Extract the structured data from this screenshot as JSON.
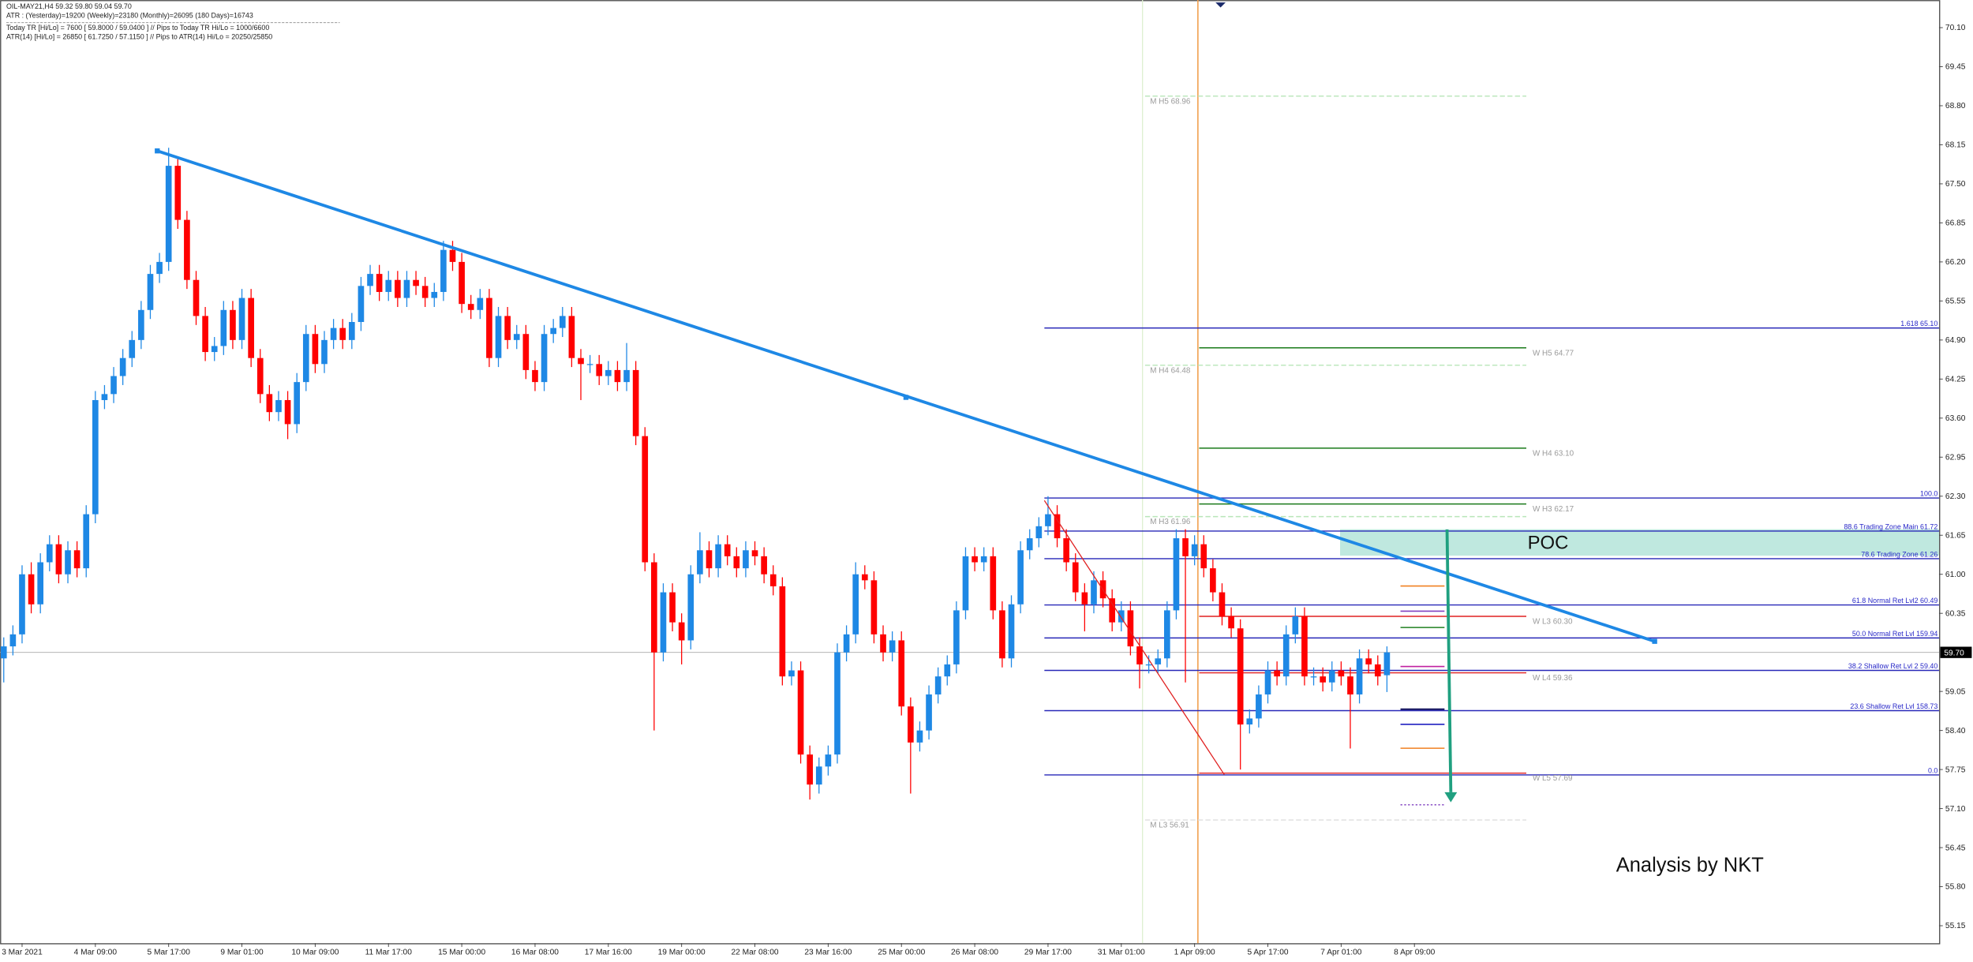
{
  "header": {
    "lines": [
      "OIL-MAY21,H4  59.32 59.80 59.04 59.70",
      "ATR : (Yesterday)=19200     (Weekly)=23180     (Monthly)=26095     (180 Days)=16743",
      "Today  TR [Hi/Lo] = 7600 [ 59.8000 / 59.0400 ]  // Pips to Today  TR Hi/Lo  = 1000/6600",
      "ATR(14)      [Hi/Lo] = 26850 [ 61.7250 / 57.1150 ]  // Pips to ATR(14) Hi/Lo      = 20250/25850"
    ]
  },
  "chart_data": {
    "type": "candlestick",
    "up_color": "#1e88e5",
    "down_color": "#ff0000",
    "xlim": [
      -0.41,
      211.27
    ],
    "ylim": [
      54.86,
      70.56
    ],
    "xticks": [
      {
        "value": 2,
        "label": "3 Mar 2021"
      },
      {
        "value": 10,
        "label": "4 Mar 09:00"
      },
      {
        "value": 18,
        "label": "5 Mar 17:00"
      },
      {
        "value": 26,
        "label": "9 Mar 01:00"
      },
      {
        "value": 34,
        "label": "10 Mar 09:00"
      },
      {
        "value": 42,
        "label": "11 Mar 17:00"
      },
      {
        "value": 50,
        "label": "15 Mar 00:00"
      },
      {
        "value": 58,
        "label": "16 Mar 08:00"
      },
      {
        "value": 66,
        "label": "17 Mar 16:00"
      },
      {
        "value": 74,
        "label": "19 Mar 00:00"
      },
      {
        "value": 82,
        "label": "22 Mar 08:00"
      },
      {
        "value": 90,
        "label": "23 Mar 16:00"
      },
      {
        "value": 98,
        "label": "25 Mar 00:00"
      },
      {
        "value": 106,
        "label": "26 Mar 08:00"
      },
      {
        "value": 114,
        "label": "29 Mar 17:00"
      },
      {
        "value": 122,
        "label": "31 Mar 01:00"
      },
      {
        "value": 130,
        "label": "1 Apr 09:00"
      },
      {
        "value": 138,
        "label": "5 Apr 17:00"
      },
      {
        "value": 146,
        "label": "7 Apr 01:00"
      },
      {
        "value": 154,
        "label": "8 Apr 09:00"
      }
    ],
    "yticks": [
      {
        "value": 70.1,
        "label": "70.10"
      },
      69.45,
      {
        "value": 68.8,
        "label": "68.80"
      },
      68.15,
      {
        "value": 67.5,
        "label": "67.50"
      },
      66.85,
      {
        "value": 66.2,
        "label": "66.20"
      },
      65.55,
      {
        "value": 64.9,
        "label": "64.90"
      },
      64.25,
      {
        "value": 63.6,
        "label": "63.60"
      },
      62.95,
      {
        "value": 62.3,
        "label": "62.30"
      },
      61.65,
      {
        "value": 61,
        "label": "61.00"
      },
      60.35,
      59.05,
      {
        "value": 58.4,
        "label": "58.40"
      },
      57.75,
      {
        "value": 57.1,
        "label": "57.10"
      },
      56.45,
      {
        "value": 55.8,
        "label": "55.80"
      },
      55.15
    ],
    "last_price": {
      "value": 59.7,
      "label": "59.70"
    },
    "candles": [
      [
        59.6,
        59.95,
        59.2,
        59.8
      ],
      [
        59.8,
        60.15,
        59.65,
        60.0
      ],
      [
        60.0,
        61.15,
        59.85,
        61.0
      ],
      [
        61.0,
        61.2,
        60.35,
        60.5
      ],
      [
        60.5,
        61.35,
        60.35,
        61.2
      ],
      [
        61.2,
        61.65,
        61.05,
        61.5
      ],
      [
        61.5,
        61.65,
        60.85,
        61.0
      ],
      [
        61.0,
        61.55,
        60.85,
        61.4
      ],
      [
        61.4,
        61.55,
        60.95,
        61.1
      ],
      [
        61.1,
        62.15,
        60.95,
        62.0
      ],
      [
        62.0,
        64.05,
        61.85,
        63.9
      ],
      [
        63.9,
        64.15,
        63.75,
        64.0
      ],
      [
        64.0,
        64.45,
        63.85,
        64.3
      ],
      [
        64.3,
        64.75,
        64.15,
        64.6
      ],
      [
        64.6,
        65.05,
        64.45,
        64.9
      ],
      [
        64.9,
        65.55,
        64.75,
        65.4
      ],
      [
        65.4,
        66.15,
        65.25,
        66.0
      ],
      [
        66.0,
        66.35,
        65.85,
        66.2
      ],
      [
        66.2,
        68.1,
        66.05,
        67.8
      ],
      [
        67.8,
        67.95,
        66.75,
        66.9
      ],
      [
        66.9,
        67.05,
        65.75,
        65.9
      ],
      [
        65.9,
        66.05,
        65.15,
        65.3
      ],
      [
        65.3,
        65.45,
        64.55,
        64.7
      ],
      [
        64.7,
        64.95,
        64.55,
        64.8
      ],
      [
        64.8,
        65.55,
        64.65,
        65.4
      ],
      [
        65.4,
        65.55,
        64.75,
        64.9
      ],
      [
        64.9,
        65.75,
        64.75,
        65.6
      ],
      [
        65.6,
        65.75,
        64.45,
        64.6
      ],
      [
        64.6,
        64.75,
        63.85,
        64.0
      ],
      [
        64.0,
        64.15,
        63.55,
        63.7
      ],
      [
        63.7,
        64.05,
        63.55,
        63.9
      ],
      [
        63.9,
        64.05,
        63.25,
        63.5
      ],
      [
        63.5,
        64.35,
        63.35,
        64.2
      ],
      [
        64.2,
        65.15,
        64.05,
        65.0
      ],
      [
        65.0,
        65.15,
        64.35,
        64.5
      ],
      [
        64.5,
        65.05,
        64.35,
        64.9
      ],
      [
        64.9,
        65.25,
        64.75,
        65.1
      ],
      [
        65.1,
        65.25,
        64.75,
        64.9
      ],
      [
        64.9,
        65.35,
        64.75,
        65.2
      ],
      [
        65.2,
        65.95,
        65.05,
        65.8
      ],
      [
        65.8,
        66.15,
        65.65,
        66.0
      ],
      [
        66.0,
        66.15,
        65.55,
        65.7
      ],
      [
        65.7,
        66.05,
        65.55,
        65.9
      ],
      [
        65.9,
        66.05,
        65.45,
        65.6
      ],
      [
        65.6,
        66.05,
        65.45,
        65.9
      ],
      [
        65.9,
        66.05,
        65.65,
        65.8
      ],
      [
        65.8,
        65.95,
        65.45,
        65.6
      ],
      [
        65.6,
        65.85,
        65.45,
        65.7
      ],
      [
        65.7,
        66.55,
        65.55,
        66.4
      ],
      [
        66.4,
        66.55,
        66.05,
        66.2
      ],
      [
        66.2,
        66.35,
        65.35,
        65.5
      ],
      [
        65.5,
        65.65,
        65.25,
        65.4
      ],
      [
        65.4,
        65.75,
        65.25,
        65.6
      ],
      [
        65.6,
        65.75,
        64.45,
        64.6
      ],
      [
        64.6,
        65.45,
        64.45,
        65.3
      ],
      [
        65.3,
        65.45,
        64.75,
        64.9
      ],
      [
        64.9,
        65.15,
        64.75,
        65.0
      ],
      [
        65.0,
        65.15,
        64.25,
        64.4
      ],
      [
        64.4,
        64.55,
        64.05,
        64.2
      ],
      [
        64.2,
        65.15,
        64.05,
        65.0
      ],
      [
        65.0,
        65.25,
        64.85,
        65.1
      ],
      [
        65.1,
        65.45,
        64.95,
        65.3
      ],
      [
        65.3,
        65.45,
        64.45,
        64.6
      ],
      [
        64.6,
        64.75,
        63.9,
        64.5
      ],
      [
        64.5,
        64.65,
        64.35,
        64.5
      ],
      [
        64.5,
        64.65,
        64.15,
        64.3
      ],
      [
        64.3,
        64.55,
        64.15,
        64.4
      ],
      [
        64.4,
        64.55,
        64.05,
        64.2
      ],
      [
        64.2,
        64.85,
        64.05,
        64.4
      ],
      [
        64.4,
        64.55,
        63.15,
        63.3
      ],
      [
        63.3,
        63.45,
        61.05,
        61.2
      ],
      [
        61.2,
        61.35,
        58.4,
        59.7
      ],
      [
        59.7,
        60.85,
        59.55,
        60.7
      ],
      [
        60.7,
        60.85,
        60.05,
        60.2
      ],
      [
        60.2,
        60.35,
        59.5,
        59.9
      ],
      [
        59.9,
        61.15,
        59.75,
        61.0
      ],
      [
        61.0,
        61.7,
        60.85,
        61.4
      ],
      [
        61.4,
        61.55,
        60.95,
        61.1
      ],
      [
        61.1,
        61.65,
        60.95,
        61.5
      ],
      [
        61.5,
        61.65,
        61.15,
        61.3
      ],
      [
        61.3,
        61.45,
        60.95,
        61.1
      ],
      [
        61.1,
        61.55,
        60.95,
        61.4
      ],
      [
        61.4,
        61.55,
        61.15,
        61.3
      ],
      [
        61.3,
        61.45,
        60.85,
        61.0
      ],
      [
        61.0,
        61.15,
        60.65,
        60.8
      ],
      [
        60.8,
        60.95,
        59.15,
        59.3
      ],
      [
        59.3,
        59.55,
        59.15,
        59.4
      ],
      [
        59.4,
        59.55,
        57.85,
        58.0
      ],
      [
        58.0,
        58.15,
        57.25,
        57.5
      ],
      [
        57.5,
        57.95,
        57.35,
        57.8
      ],
      [
        57.8,
        58.15,
        57.65,
        58.0
      ],
      [
        58.0,
        59.85,
        57.85,
        59.7
      ],
      [
        59.7,
        60.15,
        59.55,
        60.0
      ],
      [
        60.0,
        61.2,
        59.85,
        61.0
      ],
      [
        61.0,
        61.15,
        60.75,
        60.9
      ],
      [
        60.9,
        61.05,
        59.85,
        60.0
      ],
      [
        60.0,
        60.15,
        59.55,
        59.7
      ],
      [
        59.7,
        60.05,
        59.55,
        59.9
      ],
      [
        59.9,
        60.05,
        58.65,
        58.8
      ],
      [
        58.8,
        58.95,
        57.35,
        58.2
      ],
      [
        58.2,
        58.55,
        58.05,
        58.4
      ],
      [
        58.4,
        59.15,
        58.25,
        59.0
      ],
      [
        59.0,
        59.45,
        58.85,
        59.3
      ],
      [
        59.3,
        59.65,
        59.15,
        59.5
      ],
      [
        59.5,
        60.55,
        59.35,
        60.4
      ],
      [
        60.4,
        61.45,
        60.25,
        61.3
      ],
      [
        61.3,
        61.45,
        61.05,
        61.2
      ],
      [
        61.2,
        61.45,
        61.05,
        61.3
      ],
      [
        61.3,
        61.45,
        60.25,
        60.4
      ],
      [
        60.4,
        60.55,
        59.45,
        59.6
      ],
      [
        59.6,
        60.65,
        59.45,
        60.5
      ],
      [
        60.5,
        61.55,
        60.35,
        61.4
      ],
      [
        61.4,
        61.75,
        61.25,
        61.6
      ],
      [
        61.6,
        61.95,
        61.45,
        61.8
      ],
      [
        61.8,
        62.3,
        61.65,
        62.0
      ],
      [
        62.0,
        62.15,
        61.45,
        61.6
      ],
      [
        61.6,
        61.75,
        61.05,
        61.2
      ],
      [
        61.2,
        61.35,
        60.55,
        60.7
      ],
      [
        60.7,
        60.85,
        60.05,
        60.5
      ],
      [
        60.5,
        61.05,
        60.35,
        60.9
      ],
      [
        60.9,
        61.05,
        60.45,
        60.6
      ],
      [
        60.6,
        60.75,
        60.05,
        60.2
      ],
      [
        60.2,
        60.55,
        60.05,
        60.4
      ],
      [
        60.4,
        60.55,
        59.65,
        59.8
      ],
      [
        59.8,
        59.95,
        59.1,
        59.5
      ],
      [
        59.5,
        59.65,
        59.35,
        59.5
      ],
      [
        59.5,
        59.75,
        59.35,
        59.6
      ],
      [
        59.6,
        60.55,
        59.45,
        60.4
      ],
      [
        60.4,
        61.75,
        60.25,
        61.6
      ],
      [
        61.6,
        61.75,
        59.2,
        61.3
      ],
      [
        61.3,
        61.65,
        61.15,
        61.5
      ],
      [
        61.5,
        61.65,
        60.95,
        61.1
      ],
      [
        61.1,
        61.25,
        60.55,
        60.7
      ],
      [
        60.7,
        60.85,
        60.15,
        60.3
      ],
      [
        60.3,
        60.45,
        59.95,
        60.1
      ],
      [
        60.1,
        60.25,
        57.75,
        58.5
      ],
      [
        58.5,
        58.75,
        58.35,
        58.6
      ],
      [
        58.6,
        59.15,
        58.45,
        59.0
      ],
      [
        59.0,
        59.55,
        58.85,
        59.4
      ],
      [
        59.4,
        59.55,
        59.15,
        59.3
      ],
      [
        59.3,
        60.15,
        59.15,
        60.0
      ],
      [
        60.0,
        60.45,
        59.85,
        60.3
      ],
      [
        60.3,
        60.45,
        59.15,
        59.3
      ],
      [
        59.3,
        59.45,
        59.15,
        59.3
      ],
      [
        59.3,
        59.45,
        59.05,
        59.2
      ],
      [
        59.2,
        59.55,
        59.05,
        59.4
      ],
      [
        59.4,
        59.55,
        59.15,
        59.3
      ],
      [
        59.3,
        59.45,
        58.1,
        59.0
      ],
      [
        59.0,
        59.75,
        58.85,
        59.6
      ],
      [
        59.6,
        59.75,
        59.35,
        59.5
      ],
      [
        59.5,
        59.65,
        59.15,
        59.3
      ],
      [
        59.32,
        59.8,
        59.04,
        59.7
      ]
    ],
    "fib_levels": [
      {
        "label": "1.618 65.10",
        "value": 65.1
      },
      {
        "label": "100.0",
        "value": 62.27
      },
      {
        "label": "88.6 Trading Zone Main 61.72",
        "value": 61.72
      },
      {
        "label": "78.6 Trading Zone 61.26",
        "value": 61.26
      },
      {
        "label": "61.8 Normal Ret Lvl2 60.49",
        "value": 60.49
      },
      {
        "label": "50.0 Normal Ret Lvl 159.94",
        "value": 59.94
      },
      {
        "label": "38.2 Shallow Ret Lvl 2 59.40",
        "value": 59.4
      },
      {
        "label": "23.6 Shallow Ret Lvl 158.73",
        "value": 58.73
      },
      {
        "label": "0.0",
        "value": 57.66
      }
    ],
    "monthly_pivots": [
      {
        "label": "M  H5 68.96",
        "value": 68.96,
        "color": "#b8e6b8",
        "dash": true
      },
      {
        "label": "M  H4 64.48",
        "value": 64.48,
        "color": "#b8e6b8",
        "dash": true
      },
      {
        "label": "M  H3 61.96",
        "value": 61.96,
        "color": "#b8e6b8",
        "dash": true
      },
      {
        "label": "M  L3 56.91",
        "value": 56.91,
        "color": "#dddddd",
        "dash": true
      }
    ],
    "weekly_pivots": [
      {
        "label": "W  H5 64.77",
        "value": 64.77,
        "color": "#1a7a1a",
        "dash": false
      },
      {
        "label": "W  H4 63.10",
        "value": 63.1,
        "color": "#1a7a1a",
        "dash": false
      },
      {
        "label": "W  H3 62.17",
        "value": 62.17,
        "color": "#1a7a1a",
        "dash": false
      },
      {
        "label": "W  L3 60.30",
        "value": 60.3,
        "color": "#e02020",
        "dash": false
      },
      {
        "label": "W  L4 59.36",
        "value": 59.36,
        "color": "#e02020",
        "dash": false
      },
      {
        "label": "W  L5 57.69",
        "value": 57.69,
        "color": "#e02020",
        "dash": false
      }
    ],
    "poc": {
      "label": "POC",
      "low": 61.31,
      "high": 61.75,
      "color": "#bfe8df"
    },
    "annotation": "Analysis by NKT"
  }
}
